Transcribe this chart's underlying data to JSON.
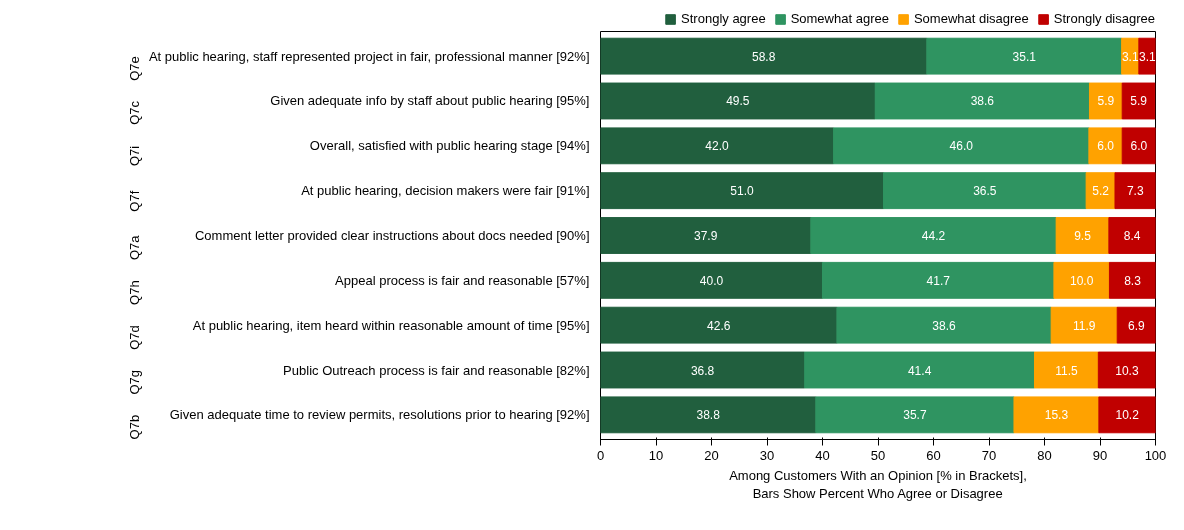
{
  "chart_data": {
    "type": "bar",
    "orientation": "horizontal",
    "stacked": true,
    "legend": "top right",
    "grid": false,
    "xlabel": "Among Customers With an Opinion [% in Brackets],\nBars Show Percent Who Agree or Disagree",
    "categories": [
      "At public hearing, staff represented project in fair, professional manner [92%]",
      "Given adequate info by staff about public hearing [95%]",
      "Overall, satisfied with public hearing stage [94%]",
      "At public hearing, decision makers were fair [91%]",
      "Comment letter provided clear instructions about docs needed [90%]",
      "Appeal process is fair and reasonable [57%]",
      "At public hearing, item heard within reasonable amount of time [95%]",
      "Public Outreach process is fair and reasonable [82%]",
      "Given adequate time to review permits, resolutions prior to hearing [92%]"
    ],
    "annotations": [
      "Q7e",
      "Q7c",
      "Q7i",
      "Q7f",
      "Q7a",
      "Q7h",
      "Q7d",
      "Q7g",
      "Q7b"
    ],
    "series": [
      {
        "name": "Strongly agree",
        "color": "#215f3e",
        "values": [
          58.8,
          49.5,
          42.0,
          51.0,
          37.9,
          40.0,
          42.6,
          36.8,
          38.8
        ],
        "value_labels": [
          "58.8",
          "49.5",
          "42.0",
          "51.0",
          "37.9",
          "40.0",
          "42.6",
          "36.8",
          "38.8"
        ]
      },
      {
        "name": "Somewhat agree",
        "color": "#2f9461",
        "values": [
          35.1,
          38.6,
          46.0,
          36.5,
          44.2,
          41.7,
          38.6,
          41.4,
          35.7
        ],
        "value_labels": [
          "35.1",
          "38.6",
          "46.0",
          "36.5",
          "44.2",
          "41.7",
          "38.6",
          "41.4",
          "35.7"
        ]
      },
      {
        "name": "Somewhat disagree",
        "color": "#ffa200",
        "values": [
          3.1,
          5.9,
          6.0,
          5.2,
          9.5,
          10.0,
          11.9,
          11.5,
          15.3
        ],
        "value_labels": [
          "3.1",
          "5.9",
          "6.0",
          "5.2",
          "9.5",
          "10.0",
          "11.9",
          "11.5",
          "15.3"
        ]
      },
      {
        "name": "Strongly disagree",
        "color": "#c00000",
        "values": [
          3.1,
          5.9,
          6.0,
          7.3,
          8.4,
          8.3,
          6.9,
          10.3,
          10.2
        ],
        "value_labels": [
          "3.1",
          "5.9",
          "6.0",
          "7.3",
          "8.4",
          "8.3",
          "6.9",
          "10.3",
          "10.2"
        ]
      }
    ],
    "xlim": [
      0,
      100
    ],
    "xticks": [
      0,
      10,
      20,
      30,
      40,
      50,
      60,
      70,
      80,
      90,
      100
    ]
  }
}
